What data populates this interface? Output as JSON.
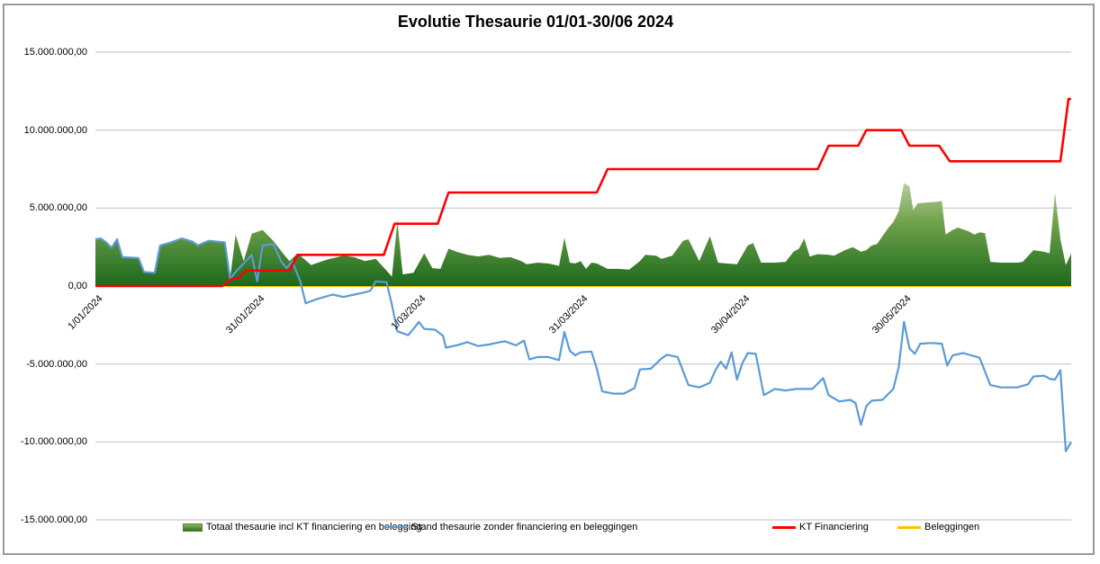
{
  "title": "Evolutie Thesaurie 01/01-30/06 2024",
  "colors": {
    "line_blue": "#5B9BD5",
    "line_red": "#FF0000",
    "line_yellow": "#FFC000",
    "area_green_top": "#CBDCB4",
    "area_green_mid": "#6FA14B",
    "area_green_bottom": "#1C691B",
    "gridline": "#BFBFBF",
    "frame_border": "#9A9A9A"
  },
  "chart_data": {
    "type": "area",
    "title": "Evolutie Thesaurie 01/01-30/06 2024",
    "xlabel": "",
    "ylabel": "",
    "unit": "EUR millions",
    "x_unit": "day index, 0 = 1/01/2024",
    "xlim": [
      0,
      181
    ],
    "ylim": [
      -15000000,
      15000000
    ],
    "grid": true,
    "legend_position": "bottom",
    "y_tick_values": [
      15000000,
      10000000,
      5000000,
      0,
      -5000000,
      -10000000,
      -15000000
    ],
    "y_tick_labels": [
      "15.000.000,00",
      "10.000.000,00",
      "5.000.000,00",
      "0,00",
      "-5.000.000,00",
      "-10.000.000,00",
      "-15.000.000,00"
    ],
    "x_tick_days": [
      0,
      30,
      60,
      90,
      120,
      150
    ],
    "x_tick_labels": [
      "1/01/2024",
      "31/01/2024",
      "1/03/2024",
      "31/03/2024",
      "30/04/2024",
      "30/05/2024"
    ],
    "series": [
      {
        "name": "Totaal thesaurie incl KT financiering en belegging",
        "type": "area",
        "color": "#4C8A33",
        "points": [
          [
            0,
            3.0
          ],
          [
            1,
            3.05
          ],
          [
            2,
            2.8
          ],
          [
            3,
            2.45
          ],
          [
            4,
            3.0
          ],
          [
            5,
            1.85
          ],
          [
            8,
            1.8
          ],
          [
            9,
            0.9
          ],
          [
            11,
            0.85
          ],
          [
            12,
            2.6
          ],
          [
            14,
            2.8
          ],
          [
            16,
            3.05
          ],
          [
            18,
            2.85
          ],
          [
            19,
            2.6
          ],
          [
            20,
            2.75
          ],
          [
            21,
            2.9
          ],
          [
            24,
            2.8
          ],
          [
            25,
            0.5
          ],
          [
            26,
            3.3
          ],
          [
            27.5,
            1.6
          ],
          [
            29,
            3.35
          ],
          [
            31,
            3.6
          ],
          [
            33,
            2.9
          ],
          [
            35,
            2.0
          ],
          [
            36,
            1.6
          ],
          [
            37.5,
            2.1
          ],
          [
            40,
            1.35
          ],
          [
            43,
            1.7
          ],
          [
            46,
            1.95
          ],
          [
            48,
            1.85
          ],
          [
            50,
            1.6
          ],
          [
            52,
            1.75
          ],
          [
            54,
            1.0
          ],
          [
            55,
            0.6
          ],
          [
            56,
            4.2
          ],
          [
            57,
            0.75
          ],
          [
            59,
            0.85
          ],
          [
            61,
            2.1
          ],
          [
            62.5,
            1.15
          ],
          [
            64,
            1.1
          ],
          [
            65.5,
            2.4
          ],
          [
            67,
            2.2
          ],
          [
            69,
            2.0
          ],
          [
            71,
            1.9
          ],
          [
            73,
            2.0
          ],
          [
            75,
            1.8
          ],
          [
            77,
            1.85
          ],
          [
            79,
            1.6
          ],
          [
            80,
            1.4
          ],
          [
            82,
            1.5
          ],
          [
            84,
            1.45
          ],
          [
            86,
            1.3
          ],
          [
            87,
            3.1
          ],
          [
            88,
            1.5
          ],
          [
            89,
            1.45
          ],
          [
            90,
            1.6
          ],
          [
            91,
            1.1
          ],
          [
            92,
            1.5
          ],
          [
            93,
            1.45
          ],
          [
            95,
            1.1
          ],
          [
            97,
            1.1
          ],
          [
            99,
            1.05
          ],
          [
            101,
            1.6
          ],
          [
            102,
            2.0
          ],
          [
            104,
            1.95
          ],
          [
            105,
            1.75
          ],
          [
            107,
            1.95
          ],
          [
            109,
            2.9
          ],
          [
            110,
            3.0
          ],
          [
            112,
            1.6
          ],
          [
            114,
            3.2
          ],
          [
            115.5,
            1.5
          ],
          [
            117,
            1.45
          ],
          [
            119,
            1.4
          ],
          [
            121,
            2.6
          ],
          [
            122,
            2.75
          ],
          [
            123.5,
            1.5
          ],
          [
            126,
            1.5
          ],
          [
            128,
            1.55
          ],
          [
            129.5,
            2.2
          ],
          [
            130.5,
            2.4
          ],
          [
            131.5,
            3.05
          ],
          [
            132.5,
            1.9
          ],
          [
            134,
            2.05
          ],
          [
            136,
            2.0
          ],
          [
            137,
            1.95
          ],
          [
            139,
            2.3
          ],
          [
            140.5,
            2.5
          ],
          [
            142,
            2.2
          ],
          [
            143,
            2.3
          ],
          [
            144,
            2.6
          ],
          [
            145,
            2.7
          ],
          [
            146,
            3.2
          ],
          [
            147,
            3.7
          ],
          [
            148,
            4.1
          ],
          [
            149,
            4.8
          ],
          [
            150,
            6.6
          ],
          [
            151,
            6.4
          ],
          [
            151.7,
            4.85
          ],
          [
            152.5,
            5.3
          ],
          [
            154,
            5.35
          ],
          [
            156,
            5.4
          ],
          [
            157,
            5.45
          ],
          [
            157.7,
            3.3
          ],
          [
            159,
            3.6
          ],
          [
            160,
            3.75
          ],
          [
            162,
            3.5
          ],
          [
            163,
            3.3
          ],
          [
            164,
            3.45
          ],
          [
            165,
            3.4
          ],
          [
            166,
            1.55
          ],
          [
            168,
            1.5
          ],
          [
            171,
            1.5
          ],
          [
            172,
            1.55
          ],
          [
            174,
            2.3
          ],
          [
            176,
            2.2
          ],
          [
            177,
            2.1
          ],
          [
            178,
            6.0
          ],
          [
            179,
            3.0
          ],
          [
            180,
            1.35
          ],
          [
            181,
            2.1
          ]
        ]
      },
      {
        "name": "Stand thesaurie zonder financiering en beleggingen",
        "type": "line",
        "color": "#5B9BD5",
        "points": [
          [
            0,
            3.0
          ],
          [
            1,
            3.05
          ],
          [
            2,
            2.8
          ],
          [
            3,
            2.45
          ],
          [
            4,
            3.0
          ],
          [
            5,
            1.85
          ],
          [
            8,
            1.8
          ],
          [
            9,
            0.9
          ],
          [
            11,
            0.85
          ],
          [
            12,
            2.6
          ],
          [
            14,
            2.8
          ],
          [
            16,
            3.05
          ],
          [
            18,
            2.85
          ],
          [
            19,
            2.6
          ],
          [
            20,
            2.75
          ],
          [
            21,
            2.9
          ],
          [
            24,
            2.8
          ],
          [
            25,
            0.45
          ],
          [
            26,
            0.9
          ],
          [
            29,
            2.0
          ],
          [
            30,
            0.3
          ],
          [
            31,
            2.6
          ],
          [
            32,
            2.65
          ],
          [
            33,
            2.7
          ],
          [
            34.5,
            1.55
          ],
          [
            35.5,
            1.15
          ],
          [
            36.5,
            1.6
          ],
          [
            38,
            0.3
          ],
          [
            39,
            -1.1
          ],
          [
            41,
            -0.85
          ],
          [
            44,
            -0.55
          ],
          [
            46,
            -0.7
          ],
          [
            48,
            -0.55
          ],
          [
            50,
            -0.4
          ],
          [
            51,
            -0.3
          ],
          [
            52,
            0.3
          ],
          [
            54,
            0.25
          ],
          [
            55,
            -1.2
          ],
          [
            56,
            -2.9
          ],
          [
            58,
            -3.15
          ],
          [
            59,
            -2.75
          ],
          [
            60,
            -2.3
          ],
          [
            61,
            -2.75
          ],
          [
            63,
            -2.8
          ],
          [
            64.5,
            -3.2
          ],
          [
            65,
            -3.95
          ],
          [
            67,
            -3.8
          ],
          [
            69,
            -3.6
          ],
          [
            71,
            -3.85
          ],
          [
            73,
            -3.75
          ],
          [
            75,
            -3.6
          ],
          [
            76,
            -3.55
          ],
          [
            78,
            -3.8
          ],
          [
            79.5,
            -3.5
          ],
          [
            80.5,
            -4.7
          ],
          [
            82,
            -4.55
          ],
          [
            84,
            -4.55
          ],
          [
            86,
            -4.75
          ],
          [
            87,
            -2.95
          ],
          [
            88,
            -4.15
          ],
          [
            89,
            -4.45
          ],
          [
            90,
            -4.25
          ],
          [
            92,
            -4.2
          ],
          [
            93,
            -5.3
          ],
          [
            94,
            -6.75
          ],
          [
            96,
            -6.9
          ],
          [
            98,
            -6.9
          ],
          [
            100,
            -6.55
          ],
          [
            101,
            -5.35
          ],
          [
            103,
            -5.3
          ],
          [
            105,
            -4.65
          ],
          [
            106,
            -4.4
          ],
          [
            108,
            -4.55
          ],
          [
            110,
            -6.35
          ],
          [
            112,
            -6.5
          ],
          [
            114,
            -6.2
          ],
          [
            115,
            -5.4
          ],
          [
            116,
            -4.85
          ],
          [
            117,
            -5.3
          ],
          [
            118,
            -4.25
          ],
          [
            119,
            -6.0
          ],
          [
            120,
            -4.95
          ],
          [
            121,
            -4.3
          ],
          [
            122.5,
            -4.35
          ],
          [
            124,
            -7.0
          ],
          [
            126,
            -6.6
          ],
          [
            128,
            -6.7
          ],
          [
            130,
            -6.6
          ],
          [
            133,
            -6.6
          ],
          [
            135,
            -5.9
          ],
          [
            136,
            -7.0
          ],
          [
            138,
            -7.4
          ],
          [
            140,
            -7.3
          ],
          [
            141,
            -7.5
          ],
          [
            142,
            -8.9
          ],
          [
            143,
            -7.7
          ],
          [
            144,
            -7.35
          ],
          [
            146,
            -7.3
          ],
          [
            148,
            -6.6
          ],
          [
            149,
            -5.2
          ],
          [
            150,
            -2.3
          ],
          [
            151,
            -4.0
          ],
          [
            152,
            -4.35
          ],
          [
            153,
            -3.7
          ],
          [
            155,
            -3.65
          ],
          [
            157,
            -3.7
          ],
          [
            158,
            -5.1
          ],
          [
            159,
            -4.45
          ],
          [
            161,
            -4.3
          ],
          [
            163,
            -4.5
          ],
          [
            164,
            -4.6
          ],
          [
            166,
            -6.35
          ],
          [
            168,
            -6.5
          ],
          [
            171,
            -6.5
          ],
          [
            173,
            -6.3
          ],
          [
            174,
            -5.8
          ],
          [
            176,
            -5.75
          ],
          [
            177,
            -5.95
          ],
          [
            178,
            -6.0
          ],
          [
            179,
            -5.4
          ],
          [
            180,
            -10.6
          ],
          [
            181,
            -10.0
          ]
        ]
      },
      {
        "name": "KT Financiering",
        "type": "step-line",
        "color": "#FF0000",
        "points": [
          [
            0,
            0
          ],
          [
            23.5,
            0
          ],
          [
            25.5,
            0.5
          ],
          [
            26.5,
            0.5
          ],
          [
            28,
            1
          ],
          [
            36,
            1
          ],
          [
            37.5,
            2
          ],
          [
            53.5,
            2
          ],
          [
            55.5,
            4
          ],
          [
            63.5,
            4
          ],
          [
            65.5,
            6
          ],
          [
            93,
            6
          ],
          [
            95,
            7.5
          ],
          [
            134,
            7.5
          ],
          [
            136,
            9
          ],
          [
            141.5,
            9
          ],
          [
            143,
            10
          ],
          [
            149.5,
            10
          ],
          [
            151,
            9
          ],
          [
            156.5,
            9
          ],
          [
            158.5,
            8
          ],
          [
            179,
            8
          ],
          [
            180.5,
            12
          ],
          [
            181,
            12
          ]
        ]
      },
      {
        "name": "Beleggingen",
        "type": "line",
        "color": "#FFC000",
        "points": [
          [
            0,
            0
          ],
          [
            181,
            0
          ]
        ]
      }
    ]
  },
  "legend": {
    "item1": "Totaal thesaurie incl KT financiering en belegging",
    "item2": "Stand thesaurie zonder financiering en beleggingen",
    "item3": "KT Financiering",
    "item4": "Beleggingen"
  }
}
